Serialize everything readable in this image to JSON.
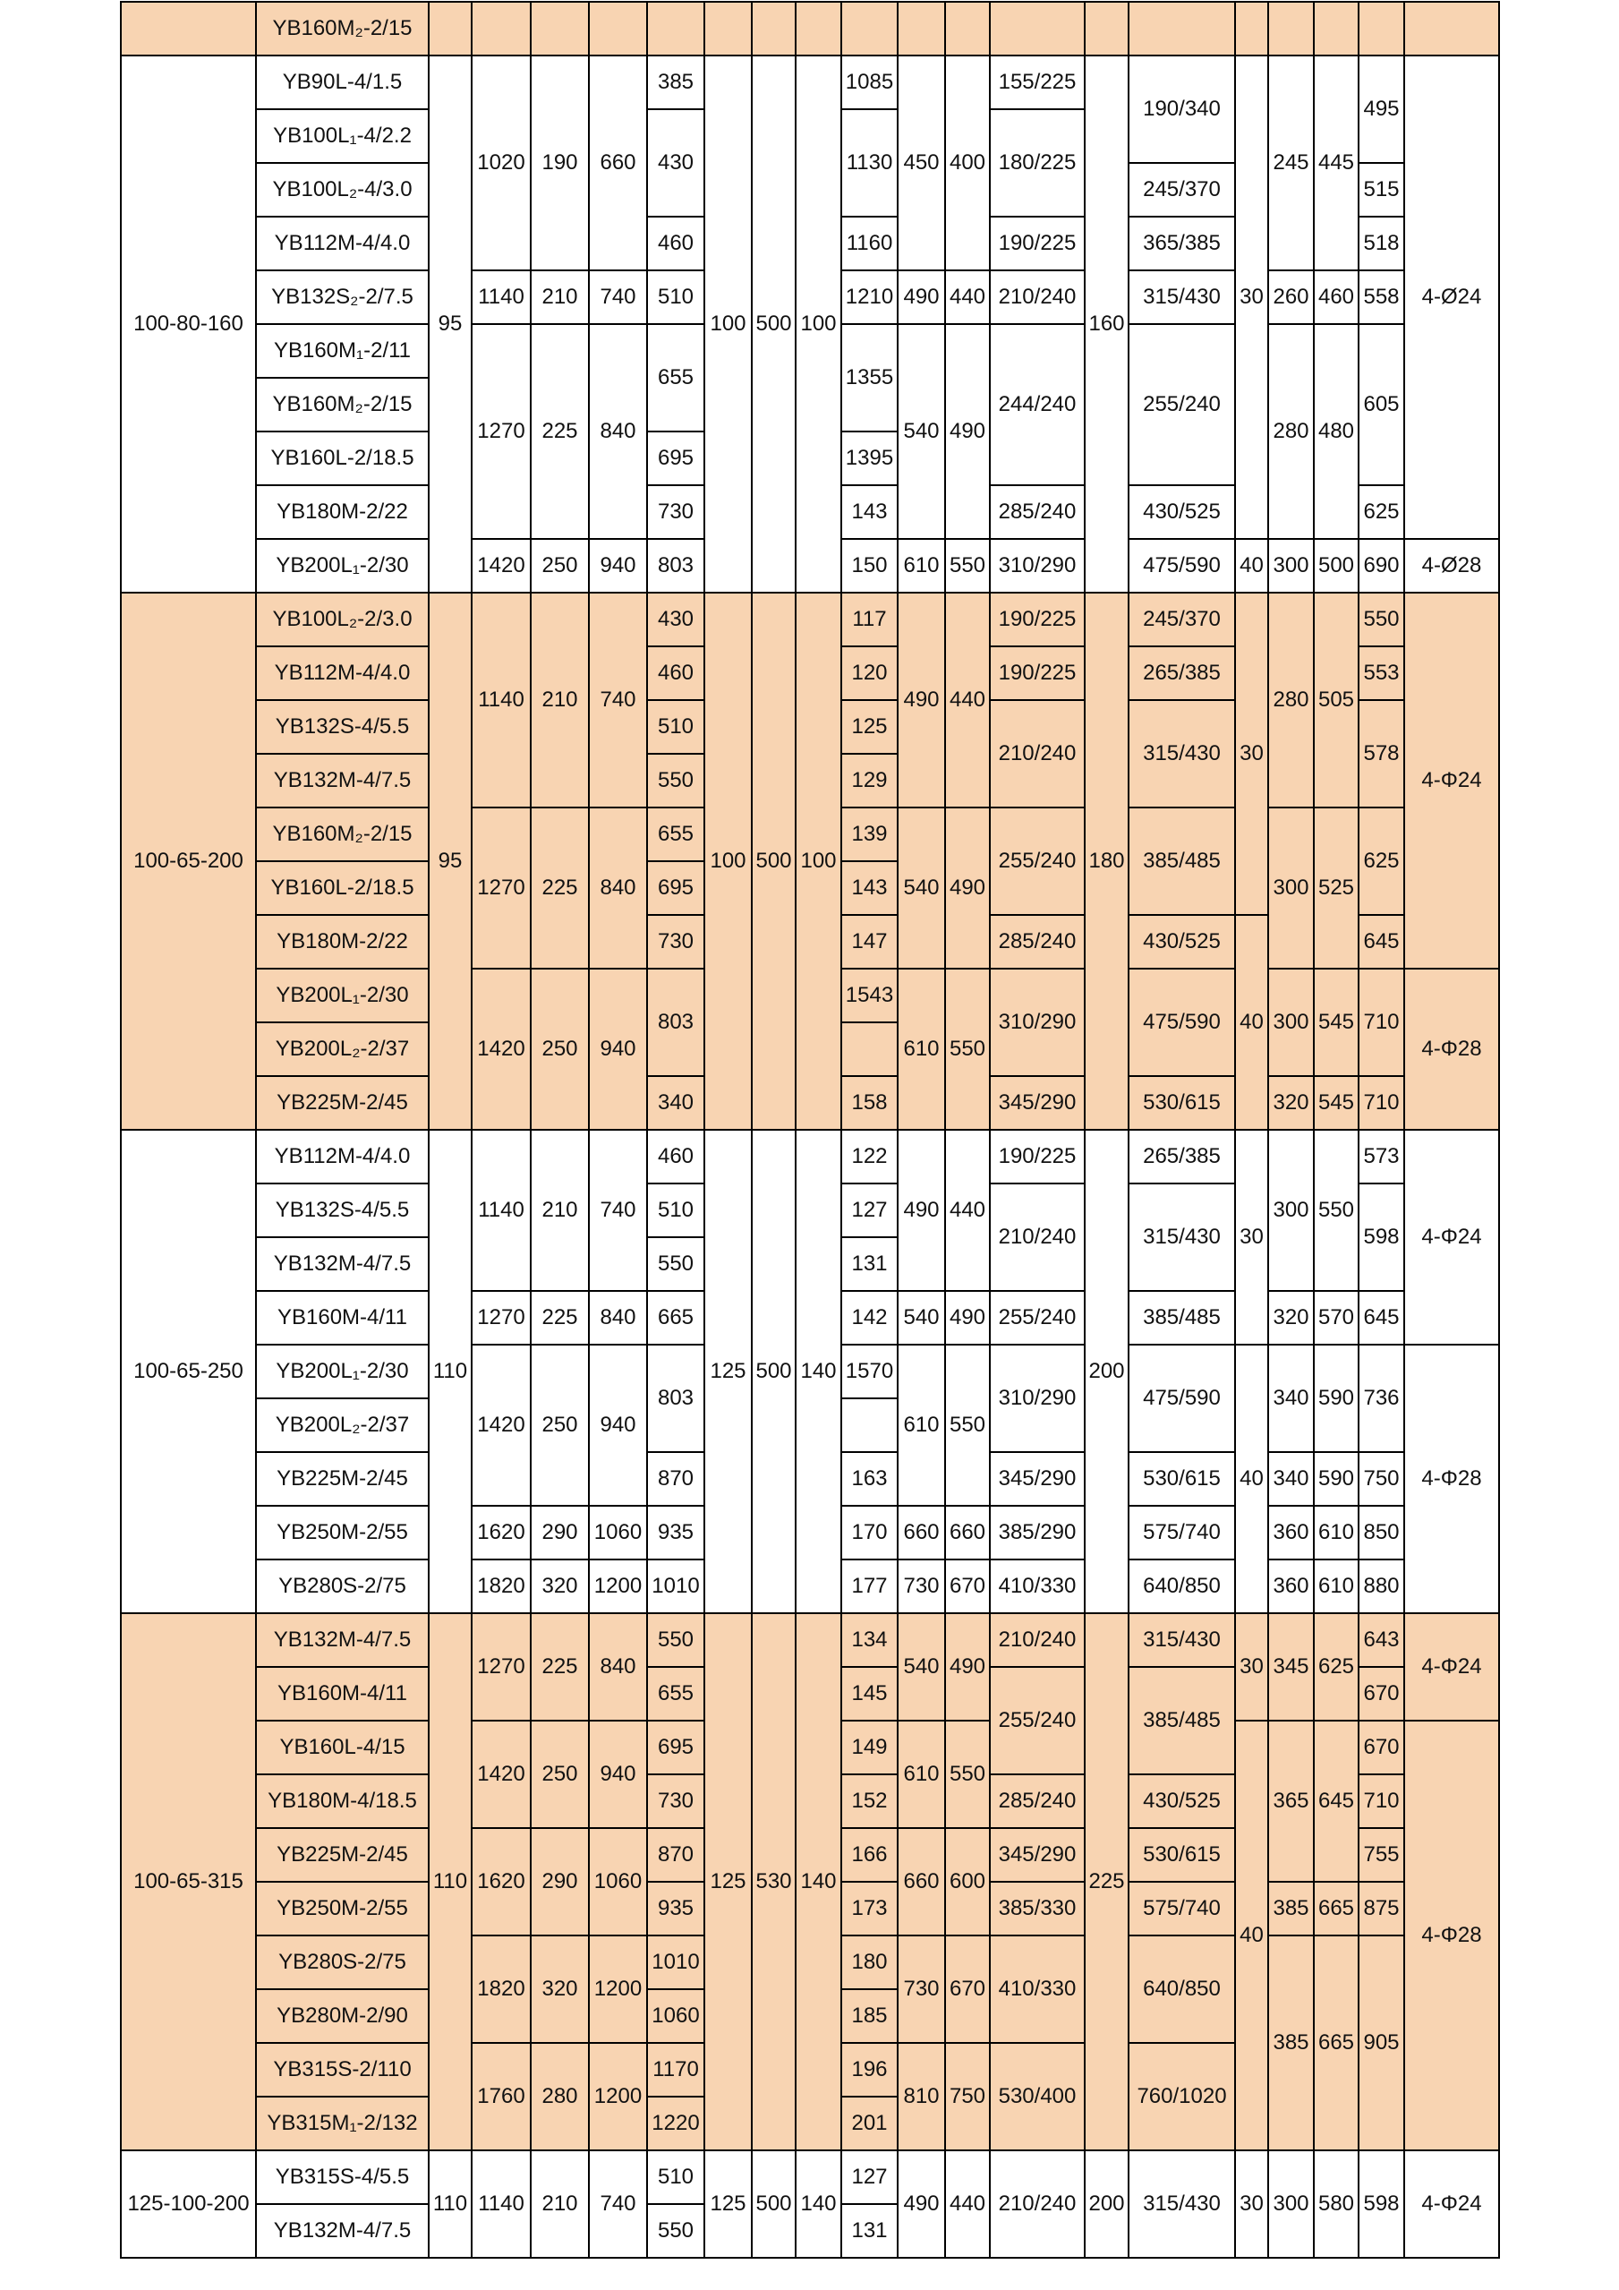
{
  "colors": {
    "shaded_band": "#F8D4B2",
    "border": "#000000"
  },
  "sections": [
    {
      "shaded": true,
      "rows": [
        [
          "",
          "YB160M₂-2/15",
          "",
          "",
          "",
          "",
          "",
          "",
          "",
          "",
          "",
          "",
          "",
          "",
          "",
          "",
          "",
          "",
          "",
          "",
          ""
        ]
      ]
    },
    {
      "shaded": false,
      "rows": [
        [
          [
            "100-80-160",
            10
          ],
          "YB90L-4/1.5",
          [
            "95",
            10
          ],
          [
            "1020",
            4
          ],
          [
            "190",
            4
          ],
          [
            "660",
            4
          ],
          "385",
          [
            "100",
            10
          ],
          [
            "500",
            10
          ],
          [
            "100",
            10
          ],
          "1085",
          [
            "450",
            4
          ],
          [
            "400",
            4
          ],
          "155/225",
          [
            "160",
            10
          ],
          [
            "190/340",
            2
          ],
          [
            "30",
            9
          ],
          [
            "245",
            4
          ],
          [
            "445",
            4
          ],
          [
            "495",
            2
          ],
          [
            "4-Ø24",
            9
          ]
        ],
        [
          "YB100L₁-4/2.2",
          [
            "430",
            2
          ],
          [
            "1130",
            2
          ],
          [
            "180/225",
            2
          ]
        ],
        [
          "YB100L₂-4/3.0",
          "245/370",
          "515"
        ],
        [
          "YB112M-4/4.0",
          "460",
          "1160",
          "190/225",
          "365/385",
          "518"
        ],
        [
          "YB132S₂-2/7.5",
          "1140",
          "210",
          "740",
          "510",
          "1210",
          "490",
          "440",
          "210/240",
          "315/430",
          "260",
          "460",
          "558"
        ],
        [
          "YB160M₁-2/11",
          [
            "1270",
            4
          ],
          [
            "225",
            4
          ],
          [
            "840",
            4
          ],
          [
            "655",
            2
          ],
          [
            "1355",
            2
          ],
          [
            "540",
            4
          ],
          [
            "490",
            4
          ],
          [
            "244/240",
            3
          ],
          [
            "255/240",
            3
          ],
          [
            "280",
            4
          ],
          [
            "480",
            4
          ],
          [
            "605",
            3
          ]
        ],
        [
          "YB160M₂-2/15"
        ],
        [
          "YB160L-2/18.5",
          "695",
          "1395"
        ],
        [
          "YB180M-2/22",
          "730",
          "143",
          "285/240",
          "430/525",
          "625"
        ],
        [
          "YB200L₁-2/30",
          "1420",
          "250",
          "940",
          "803",
          "150",
          "610",
          "550",
          "310/290",
          "475/590",
          "40",
          "300",
          "500",
          "690",
          "4-Ø28"
        ]
      ]
    },
    {
      "shaded": true,
      "rows": [
        [
          [
            "100-65-200",
            10
          ],
          "YB100L₂-2/3.0",
          [
            "95",
            10
          ],
          [
            "1140",
            4
          ],
          [
            "210",
            4
          ],
          [
            "740",
            4
          ],
          "430",
          [
            "100",
            10
          ],
          [
            "500",
            10
          ],
          [
            "100",
            10
          ],
          "117",
          [
            "490",
            4
          ],
          [
            "440",
            4
          ],
          "190/225",
          [
            "180",
            10
          ],
          "245/370",
          [
            "30",
            6
          ],
          [
            "280",
            4
          ],
          [
            "505",
            4
          ],
          "550",
          [
            "4-Φ24",
            7
          ]
        ],
        [
          "YB112M-4/4.0",
          "460",
          "120",
          "190/225",
          "265/385",
          "553"
        ],
        [
          "YB132S-4/5.5",
          "510",
          "125",
          [
            "210/240",
            2
          ],
          [
            "315/430",
            2
          ],
          [
            "578",
            2
          ]
        ],
        [
          "YB132M-4/7.5",
          "550",
          "129"
        ],
        [
          "YB160M₂-2/15",
          [
            "1270",
            3
          ],
          [
            "225",
            3
          ],
          [
            "840",
            3
          ],
          "655",
          "139",
          [
            "540",
            3
          ],
          [
            "490",
            3
          ],
          [
            "255/240",
            2
          ],
          [
            "385/485",
            2
          ],
          [
            "300",
            3
          ],
          [
            "525",
            3
          ],
          [
            "625",
            2
          ]
        ],
        [
          "YB160L-2/18.5",
          "695",
          "143"
        ],
        [
          "YB180M-2/22",
          "730",
          "147",
          "285/240",
          "430/525",
          [
            "40",
            4
          ],
          "645"
        ],
        [
          "YB200L₁-2/30",
          [
            "1420",
            3
          ],
          [
            "250",
            3
          ],
          [
            "940",
            3
          ],
          [
            "803",
            2
          ],
          "1543",
          [
            "610",
            3
          ],
          [
            "550",
            3
          ],
          [
            "310/290",
            2
          ],
          [
            "475/590",
            2
          ],
          [
            "300",
            2
          ],
          [
            "545",
            2
          ],
          [
            "710",
            2
          ],
          [
            "4-Φ28",
            3
          ]
        ],
        [
          "YB200L₂-2/37",
          ""
        ],
        [
          "YB225M-2/45",
          "340",
          "158",
          "345/290",
          "530/615",
          "320",
          "545",
          "710"
        ]
      ]
    },
    {
      "shaded": false,
      "rows": [
        [
          [
            "100-65-250",
            9
          ],
          "YB112M-4/4.0",
          [
            "110",
            9
          ],
          [
            "1140",
            3
          ],
          [
            "210",
            3
          ],
          [
            "740",
            3
          ],
          "460",
          [
            "125",
            9
          ],
          [
            "500",
            9
          ],
          [
            "140",
            9
          ],
          "122",
          [
            "490",
            3
          ],
          [
            "440",
            3
          ],
          "190/225",
          [
            "200",
            9
          ],
          "265/385",
          [
            "30",
            4
          ],
          [
            "300",
            3
          ],
          [
            "550",
            3
          ],
          "573",
          [
            "4-Φ24",
            4
          ]
        ],
        [
          "YB132S-4/5.5",
          "510",
          "127",
          [
            "210/240",
            2
          ],
          [
            "315/430",
            2
          ],
          [
            "598",
            2
          ]
        ],
        [
          "YB132M-4/7.5",
          "550",
          "131"
        ],
        [
          "YB160M-4/11",
          "1270",
          "225",
          "840",
          "665",
          "142",
          "540",
          "490",
          "255/240",
          "385/485",
          "320",
          "570",
          "645"
        ],
        [
          "YB200L₁-2/30",
          [
            "1420",
            3
          ],
          [
            "250",
            3
          ],
          [
            "940",
            3
          ],
          [
            "803",
            2
          ],
          "1570",
          [
            "610",
            3
          ],
          [
            "550",
            3
          ],
          [
            "310/290",
            2
          ],
          [
            "475/590",
            2
          ],
          [
            "40",
            5
          ],
          [
            "340",
            2
          ],
          [
            "590",
            2
          ],
          [
            "736",
            2
          ],
          [
            "4-Φ28",
            5
          ]
        ],
        [
          "YB200L₂-2/37",
          ""
        ],
        [
          "YB225M-2/45",
          "870",
          "163",
          "345/290",
          "530/615",
          "340",
          "590",
          "750"
        ],
        [
          "YB250M-2/55",
          "1620",
          "290",
          "1060",
          "935",
          "170",
          "660",
          "660",
          "385/290",
          "575/740",
          "360",
          "610",
          "850"
        ],
        [
          "YB280S-2/75",
          "1820",
          "320",
          "1200",
          "1010",
          "177",
          "730",
          "670",
          "410/330",
          "640/850",
          "360",
          "610",
          "880"
        ]
      ]
    },
    {
      "shaded": true,
      "rows": [
        [
          [
            "100-65-315",
            10
          ],
          "YB132M-4/7.5",
          [
            "110",
            10
          ],
          [
            "1270",
            2
          ],
          [
            "225",
            2
          ],
          [
            "840",
            2
          ],
          "550",
          [
            "125",
            10
          ],
          [
            "530",
            10
          ],
          [
            "140",
            10
          ],
          "134",
          [
            "540",
            2
          ],
          [
            "490",
            2
          ],
          "210/240",
          [
            "225",
            10
          ],
          "315/430",
          [
            "30",
            2
          ],
          [
            "345",
            2
          ],
          [
            "625",
            2
          ],
          "643",
          [
            "4-Φ24",
            2
          ]
        ],
        [
          "YB160M-4/11",
          "655",
          "145",
          [
            "255/240",
            2
          ],
          [
            "385/485",
            2
          ],
          "670"
        ],
        [
          "YB160L-4/15",
          [
            "1420",
            2
          ],
          [
            "250",
            2
          ],
          [
            "940",
            2
          ],
          "695",
          "149",
          [
            "610",
            2
          ],
          [
            "550",
            2
          ],
          [
            "40",
            8
          ],
          [
            "365",
            3
          ],
          [
            "645",
            3
          ],
          "670",
          [
            "4-Φ28",
            8
          ]
        ],
        [
          "YB180M-4/18.5",
          "730",
          "152",
          "285/240",
          "430/525",
          "710"
        ],
        [
          "YB225M-2/45",
          [
            "1620",
            2
          ],
          [
            "290",
            2
          ],
          [
            "1060",
            2
          ],
          "870",
          "166",
          [
            "660",
            2
          ],
          [
            "600",
            2
          ],
          "345/290",
          "530/615",
          "755"
        ],
        [
          "YB250M-2/55",
          "935",
          "173",
          "385/330",
          "575/740",
          "385",
          "665",
          "875"
        ],
        [
          "YB280S-2/75",
          [
            "1820",
            2
          ],
          [
            "320",
            2
          ],
          [
            "1200",
            2
          ],
          "1010",
          "180",
          [
            "730",
            2
          ],
          [
            "670",
            2
          ],
          [
            "410/330",
            2
          ],
          [
            "640/850",
            2
          ],
          [
            "385",
            4
          ],
          [
            "665",
            4
          ],
          [
            "905",
            4
          ]
        ],
        [
          "YB280M-2/90",
          "1060",
          "185"
        ],
        [
          "YB315S-2/110",
          [
            "1760",
            2
          ],
          [
            "280",
            2
          ],
          [
            "1200",
            2
          ],
          "1170",
          "196",
          [
            "810",
            2
          ],
          [
            "750",
            2
          ],
          [
            "530/400",
            2
          ],
          [
            "760/1020",
            2
          ]
        ],
        [
          "YB315M₁-2/132",
          "1220",
          "201"
        ]
      ]
    },
    {
      "shaded": false,
      "rows": [
        [
          [
            "125-100-200",
            2
          ],
          "YB315S-4/5.5",
          [
            "110",
            2
          ],
          [
            "1140",
            2
          ],
          [
            "210",
            2
          ],
          [
            "740",
            2
          ],
          "510",
          [
            "125",
            2
          ],
          [
            "500",
            2
          ],
          [
            "140",
            2
          ],
          "127",
          [
            "490",
            2
          ],
          [
            "440",
            2
          ],
          [
            "210/240",
            2
          ],
          [
            "200",
            2
          ],
          [
            "315/430",
            2
          ],
          [
            "30",
            2
          ],
          [
            "300",
            2
          ],
          [
            "580",
            2
          ],
          [
            "598",
            2
          ],
          [
            "4-Φ24",
            2
          ]
        ],
        [
          "YB132M-4/7.5",
          "550",
          "131"
        ]
      ]
    }
  ]
}
